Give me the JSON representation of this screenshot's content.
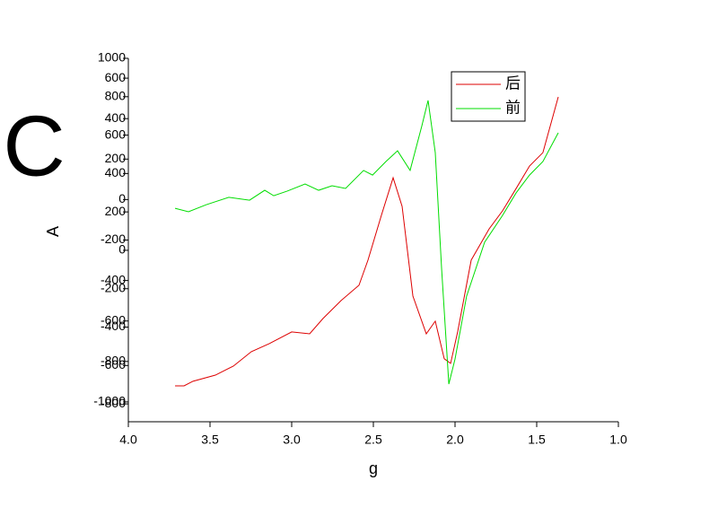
{
  "chart_data": {
    "type": "line",
    "title": "C",
    "x_label": "g",
    "y_label": "A",
    "xlim": [
      4.0,
      1.0
    ],
    "xticks": [
      {
        "value": 4,
        "label": "4.0"
      },
      {
        "value": 3.5,
        "label": "3.5"
      },
      {
        "value": 3,
        "label": "3.0"
      },
      {
        "value": 2.5,
        "label": "2.5"
      },
      {
        "value": 2,
        "label": "2.0"
      },
      {
        "value": 1.5,
        "label": "1.5"
      },
      {
        "value": 1,
        "label": "1.0"
      }
    ],
    "ylim": [
      -893,
      1000
    ],
    "yticks": [
      1000,
      800,
      600,
      400,
      200,
      0,
      -200,
      -400,
      -600,
      -800
    ],
    "y2lim": [
      -1098,
      698
    ],
    "y2ticks": [
      600,
      400,
      200,
      0,
      -200,
      -400,
      -600,
      -800,
      -1000
    ],
    "legend": "upper right",
    "series": [
      {
        "name": "后",
        "color": "#dd0000",
        "x": [
          3.714,
          3.659,
          3.604,
          3.467,
          3.357,
          3.247,
          3.137,
          3.0,
          2.89,
          2.808,
          2.698,
          2.588,
          2.533,
          2.451,
          2.379,
          2.324,
          2.258,
          2.176,
          2.121,
          2.066,
          2.027,
          1.984,
          1.901,
          1.791,
          1.709,
          1.626,
          1.544,
          1.462,
          1.368
        ],
        "values": [
          -706,
          -706,
          -682,
          -650,
          -603,
          -528,
          -486,
          -425,
          -435,
          -355,
          -262,
          -182,
          -51,
          182,
          378,
          229,
          -238,
          -435,
          -369,
          -565,
          -589,
          -425,
          -51,
          112,
          206,
          322,
          439,
          509,
          799
        ]
      },
      {
        "name": "前",
        "color": "#00dd00",
        "axis": "y2",
        "x": [
          3.714,
          3.632,
          3.522,
          3.385,
          3.258,
          3.165,
          3.11,
          3.027,
          2.918,
          2.835,
          2.753,
          2.67,
          2.56,
          2.505,
          2.423,
          2.352,
          2.275,
          2.203,
          2.165,
          2.121,
          2.082,
          2.038,
          2.0,
          1.929,
          1.819,
          1.709,
          1.626,
          1.544,
          1.462,
          1.368
        ],
        "values": [
          -43,
          -60,
          -25,
          11,
          -3,
          46,
          19,
          42,
          77,
          46,
          68,
          55,
          144,
          121,
          188,
          241,
          144,
          365,
          490,
          232,
          -344,
          -912,
          -788,
          -477,
          -211,
          -78,
          33,
          121,
          188,
          330
        ]
      }
    ]
  }
}
